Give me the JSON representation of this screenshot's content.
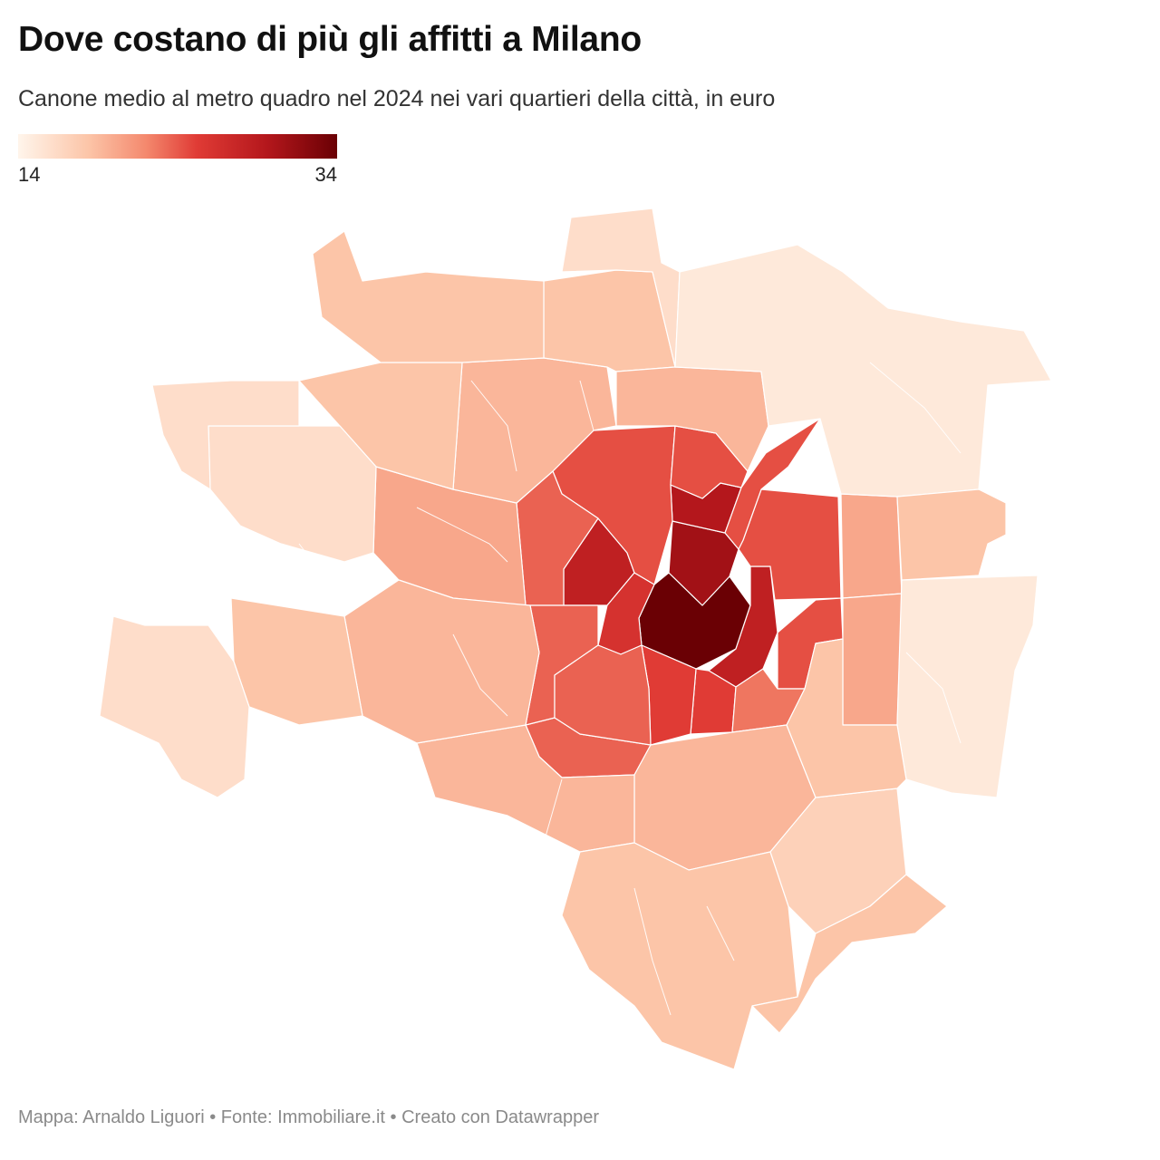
{
  "header": {
    "title": "Dove costano di più gli affitti a Milano",
    "subtitle": "Canone medio al metro quadro nel 2024 nei vari quartieri della città, in euro"
  },
  "legend": {
    "min_label": "14",
    "max_label": "34",
    "min": 14,
    "max": 34,
    "colors": [
      "#fff5eb",
      "#fcc5a8",
      "#f4896e",
      "#e03b35",
      "#b4171c",
      "#6a0004"
    ]
  },
  "footer": {
    "credit": "Mappa: Arnaldo Liguori • Fonte: Immobiliare.it • Creato con Datawrapper"
  },
  "districts": [
    {
      "id": "centro-storico",
      "value": 34
    },
    {
      "id": "brera-garibaldi",
      "value": 31
    },
    {
      "id": "isola",
      "value": 30
    },
    {
      "id": "magenta",
      "value": 29
    },
    {
      "id": "porta-venezia",
      "value": 29
    },
    {
      "id": "sant-ambrogio",
      "value": 27
    },
    {
      "id": "porta-romana",
      "value": 26
    },
    {
      "id": "ticinese",
      "value": 26
    },
    {
      "id": "xxii-marzo",
      "value": 25
    },
    {
      "id": "sempione",
      "value": 25
    },
    {
      "id": "centrale",
      "value": 25
    },
    {
      "id": "navigli",
      "value": 24
    },
    {
      "id": "citta-studi",
      "value": 25
    },
    {
      "id": "fiera",
      "value": 24
    },
    {
      "id": "tortona",
      "value": 24
    },
    {
      "id": "buenos-aires",
      "value": 24
    },
    {
      "id": "lodi",
      "value": 23
    },
    {
      "id": "san-siro",
      "value": 20
    },
    {
      "id": "bovisa",
      "value": 19
    },
    {
      "id": "niguarda",
      "value": 18
    },
    {
      "id": "lambrate",
      "value": 20
    },
    {
      "id": "greco",
      "value": 19
    },
    {
      "id": "forlanini",
      "value": 20
    },
    {
      "id": "vigentino",
      "value": 19
    },
    {
      "id": "barona",
      "value": 19
    },
    {
      "id": "lorenteggio",
      "value": 19
    },
    {
      "id": "baggio",
      "value": 18
    },
    {
      "id": "gallaratese",
      "value": 18
    },
    {
      "id": "quarto-oggiaro",
      "value": 18
    },
    {
      "id": "gratosoglio",
      "value": 18
    },
    {
      "id": "ponte-lambro",
      "value": 17
    },
    {
      "id": "quarto-cagnino",
      "value": 16
    },
    {
      "id": "figino",
      "value": 16
    },
    {
      "id": "parco-forlanini",
      "value": 15
    },
    {
      "id": "bruzzano",
      "value": 16
    },
    {
      "id": "chiaravalle",
      "value": 18
    },
    {
      "id": "rogoredo",
      "value": 18
    },
    {
      "id": "trenno",
      "value": 16
    },
    {
      "id": "parco-nord",
      "value": 15
    },
    {
      "id": "crescenzago",
      "value": 18
    }
  ]
}
